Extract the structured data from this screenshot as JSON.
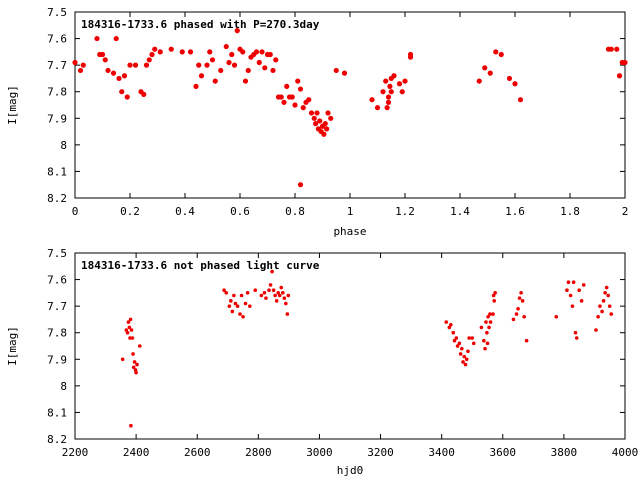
{
  "chart_data": [
    {
      "type": "scatter",
      "title": "184316-1733.6 phased with P=270.3day",
      "xlabel": "phase",
      "ylabel": "I[mag]",
      "xlim": [
        0,
        2
      ],
      "ylim": [
        8.2,
        7.5
      ],
      "y_inverted": true,
      "grid": false,
      "color": "#ee0000",
      "xticks": [
        "0",
        "0.2",
        "0.4",
        "0.6",
        "0.8",
        "1",
        "1.2",
        "1.4",
        "1.6",
        "1.8",
        "2"
      ],
      "xtick_values": [
        0,
        0.2,
        0.4,
        0.6,
        0.8,
        1.0,
        1.2,
        1.4,
        1.6,
        1.8,
        2.0
      ],
      "yticks": [
        "7.5",
        "7.6",
        "7.7",
        "7.8",
        "7.9",
        "8",
        "8.1",
        "8.2"
      ],
      "ytick_values": [
        7.5,
        7.6,
        7.7,
        7.8,
        7.9,
        8.0,
        8.1,
        8.2
      ],
      "points": [
        [
          0.0,
          7.69
        ],
        [
          0.02,
          7.72
        ],
        [
          0.03,
          7.7
        ],
        [
          0.08,
          7.6
        ],
        [
          0.09,
          7.66
        ],
        [
          0.1,
          7.66
        ],
        [
          0.11,
          7.68
        ],
        [
          0.12,
          7.72
        ],
        [
          0.14,
          7.73
        ],
        [
          0.15,
          7.6
        ],
        [
          0.16,
          7.75
        ],
        [
          0.17,
          7.8
        ],
        [
          0.18,
          7.74
        ],
        [
          0.19,
          7.82
        ],
        [
          0.2,
          7.7
        ],
        [
          0.22,
          7.7
        ],
        [
          0.24,
          7.8
        ],
        [
          0.25,
          7.81
        ],
        [
          0.26,
          7.7
        ],
        [
          0.27,
          7.68
        ],
        [
          0.28,
          7.66
        ],
        [
          0.29,
          7.64
        ],
        [
          0.31,
          7.65
        ],
        [
          0.35,
          7.64
        ],
        [
          0.39,
          7.65
        ],
        [
          0.42,
          7.65
        ],
        [
          0.44,
          7.78
        ],
        [
          0.45,
          7.7
        ],
        [
          0.46,
          7.74
        ],
        [
          0.48,
          7.7
        ],
        [
          0.49,
          7.65
        ],
        [
          0.5,
          7.68
        ],
        [
          0.51,
          7.76
        ],
        [
          0.53,
          7.72
        ],
        [
          0.55,
          7.63
        ],
        [
          0.56,
          7.69
        ],
        [
          0.57,
          7.66
        ],
        [
          0.58,
          7.7
        ],
        [
          0.59,
          7.57
        ],
        [
          0.6,
          7.64
        ],
        [
          0.61,
          7.65
        ],
        [
          0.62,
          7.76
        ],
        [
          0.63,
          7.72
        ],
        [
          0.64,
          7.67
        ],
        [
          0.65,
          7.66
        ],
        [
          0.66,
          7.65
        ],
        [
          0.67,
          7.69
        ],
        [
          0.68,
          7.65
        ],
        [
          0.69,
          7.71
        ],
        [
          0.7,
          7.66
        ],
        [
          0.71,
          7.66
        ],
        [
          0.72,
          7.72
        ],
        [
          0.73,
          7.68
        ],
        [
          0.74,
          7.82
        ],
        [
          0.75,
          7.82
        ],
        [
          0.76,
          7.84
        ],
        [
          0.77,
          7.78
        ],
        [
          0.78,
          7.82
        ],
        [
          0.79,
          7.82
        ],
        [
          0.8,
          7.85
        ],
        [
          0.81,
          7.76
        ],
        [
          0.82,
          8.15
        ],
        [
          0.82,
          7.79
        ],
        [
          0.83,
          7.86
        ],
        [
          0.84,
          7.84
        ],
        [
          0.85,
          7.83
        ],
        [
          0.86,
          7.88
        ],
        [
          0.87,
          7.9
        ],
        [
          0.875,
          7.92
        ],
        [
          0.88,
          7.88
        ],
        [
          0.885,
          7.94
        ],
        [
          0.89,
          7.91
        ],
        [
          0.895,
          7.95
        ],
        [
          0.9,
          7.93
        ],
        [
          0.905,
          7.96
        ],
        [
          0.91,
          7.92
        ],
        [
          0.915,
          7.94
        ],
        [
          0.92,
          7.88
        ],
        [
          0.93,
          7.9
        ],
        [
          0.95,
          7.72
        ],
        [
          0.98,
          7.73
        ],
        [
          1.08,
          7.83
        ],
        [
          1.1,
          7.86
        ],
        [
          1.12,
          7.8
        ],
        [
          1.13,
          7.76
        ],
        [
          1.135,
          7.86
        ],
        [
          1.14,
          7.84
        ],
        [
          1.14,
          7.82
        ],
        [
          1.145,
          7.78
        ],
        [
          1.15,
          7.75
        ],
        [
          1.15,
          7.8
        ],
        [
          1.16,
          7.74
        ],
        [
          1.18,
          7.77
        ],
        [
          1.19,
          7.8
        ],
        [
          1.2,
          7.76
        ],
        [
          1.22,
          7.66
        ],
        [
          1.22,
          7.67
        ],
        [
          1.47,
          7.76
        ],
        [
          1.49,
          7.71
        ],
        [
          1.51,
          7.73
        ],
        [
          1.53,
          7.65
        ],
        [
          1.55,
          7.66
        ],
        [
          1.58,
          7.75
        ],
        [
          1.6,
          7.77
        ],
        [
          1.62,
          7.83
        ],
        [
          1.94,
          7.64
        ],
        [
          1.95,
          7.64
        ],
        [
          1.97,
          7.64
        ],
        [
          1.98,
          7.74
        ],
        [
          1.99,
          7.69
        ],
        [
          2.0,
          7.69
        ]
      ]
    },
    {
      "type": "scatter",
      "title": "184316-1733.6 not phased light curve",
      "xlabel": "hjd0",
      "ylabel": "I[mag]",
      "xlim": [
        2200,
        4000
      ],
      "ylim": [
        8.2,
        7.5
      ],
      "y_inverted": true,
      "grid": false,
      "color": "#ee0000",
      "xticks": [
        "2200",
        "2400",
        "2600",
        "2800",
        "3000",
        "3200",
        "3400",
        "3600",
        "3800",
        "4000"
      ],
      "xtick_values": [
        2200,
        2400,
        2600,
        2800,
        3000,
        3200,
        3400,
        3600,
        3800,
        4000
      ],
      "yticks": [
        "7.5",
        "7.6",
        "7.7",
        "7.8",
        "7.9",
        "8",
        "8.1",
        "8.2"
      ],
      "ytick_values": [
        7.5,
        7.6,
        7.7,
        7.8,
        7.9,
        8.0,
        8.1,
        8.2
      ],
      "points": [
        [
          2356,
          7.9
        ],
        [
          2368,
          7.79
        ],
        [
          2372,
          7.8
        ],
        [
          2375,
          7.76
        ],
        [
          2378,
          7.78
        ],
        [
          2380,
          7.82
        ],
        [
          2382,
          7.75
        ],
        [
          2383,
          8.15
        ],
        [
          2385,
          7.79
        ],
        [
          2388,
          7.82
        ],
        [
          2390,
          7.88
        ],
        [
          2392,
          7.93
        ],
        [
          2395,
          7.91
        ],
        [
          2398,
          7.94
        ],
        [
          2400,
          7.95
        ],
        [
          2403,
          7.92
        ],
        [
          2412,
          7.85
        ],
        [
          2688,
          7.64
        ],
        [
          2695,
          7.65
        ],
        [
          2705,
          7.7
        ],
        [
          2710,
          7.68
        ],
        [
          2715,
          7.72
        ],
        [
          2720,
          7.66
        ],
        [
          2725,
          7.69
        ],
        [
          2732,
          7.7
        ],
        [
          2740,
          7.73
        ],
        [
          2745,
          7.66
        ],
        [
          2750,
          7.74
        ],
        [
          2758,
          7.69
        ],
        [
          2765,
          7.65
        ],
        [
          2772,
          7.7
        ],
        [
          2790,
          7.64
        ],
        [
          2810,
          7.66
        ],
        [
          2820,
          7.65
        ],
        [
          2825,
          7.67
        ],
        [
          2835,
          7.64
        ],
        [
          2840,
          7.62
        ],
        [
          2845,
          7.57
        ],
        [
          2850,
          7.64
        ],
        [
          2855,
          7.66
        ],
        [
          2860,
          7.68
        ],
        [
          2865,
          7.65
        ],
        [
          2870,
          7.66
        ],
        [
          2875,
          7.63
        ],
        [
          2880,
          7.65
        ],
        [
          2885,
          7.67
        ],
        [
          2890,
          7.69
        ],
        [
          2895,
          7.73
        ],
        [
          2898,
          7.66
        ],
        [
          3415,
          7.76
        ],
        [
          3425,
          7.78
        ],
        [
          3430,
          7.77
        ],
        [
          3438,
          7.8
        ],
        [
          3442,
          7.83
        ],
        [
          3448,
          7.82
        ],
        [
          3452,
          7.85
        ],
        [
          3458,
          7.84
        ],
        [
          3462,
          7.88
        ],
        [
          3466,
          7.86
        ],
        [
          3470,
          7.91
        ],
        [
          3474,
          7.89
        ],
        [
          3478,
          7.92
        ],
        [
          3482,
          7.9
        ],
        [
          3486,
          7.87
        ],
        [
          3490,
          7.82
        ],
        [
          3500,
          7.82
        ],
        [
          3505,
          7.84
        ],
        [
          3530,
          7.78
        ],
        [
          3538,
          7.83
        ],
        [
          3542,
          7.86
        ],
        [
          3545,
          7.76
        ],
        [
          3548,
          7.8
        ],
        [
          3550,
          7.84
        ],
        [
          3552,
          7.74
        ],
        [
          3555,
          7.78
        ],
        [
          3558,
          7.73
        ],
        [
          3560,
          7.76
        ],
        [
          3568,
          7.73
        ],
        [
          3570,
          7.66
        ],
        [
          3572,
          7.68
        ],
        [
          3575,
          7.65
        ],
        [
          3635,
          7.75
        ],
        [
          3645,
          7.73
        ],
        [
          3650,
          7.71
        ],
        [
          3655,
          7.67
        ],
        [
          3660,
          7.65
        ],
        [
          3665,
          7.68
        ],
        [
          3670,
          7.74
        ],
        [
          3678,
          7.83
        ],
        [
          3775,
          7.74
        ],
        [
          3810,
          7.64
        ],
        [
          3815,
          7.61
        ],
        [
          3822,
          7.66
        ],
        [
          3828,
          7.7
        ],
        [
          3832,
          7.61
        ],
        [
          3838,
          7.8
        ],
        [
          3842,
          7.82
        ],
        [
          3850,
          7.64
        ],
        [
          3858,
          7.68
        ],
        [
          3865,
          7.62
        ],
        [
          3905,
          7.79
        ],
        [
          3912,
          7.74
        ],
        [
          3918,
          7.7
        ],
        [
          3925,
          7.72
        ],
        [
          3930,
          7.68
        ],
        [
          3935,
          7.65
        ],
        [
          3940,
          7.63
        ],
        [
          3945,
          7.66
        ],
        [
          3950,
          7.7
        ],
        [
          3955,
          7.73
        ]
      ]
    }
  ]
}
